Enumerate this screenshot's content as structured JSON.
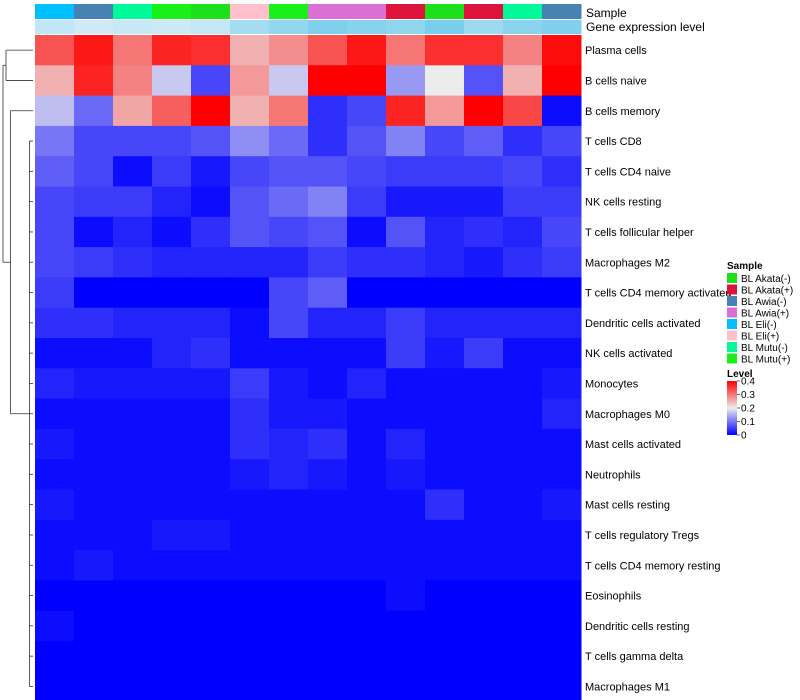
{
  "chart_data": {
    "type": "heatmap",
    "annotation_titles": {
      "sample": "Sample",
      "level": "Gene expression level"
    },
    "columns": {
      "sample": [
        "BL Eli(-)",
        "BL Awia(-)",
        "BL Mutu(-)",
        "BL Mutu(+)",
        "BL Akata(-)",
        "BL Eli(+)",
        "BL Mutu(+)",
        "BL Awia(+)",
        "BL Awia(+)",
        "BL Akata(+)",
        "BL Akata(-)",
        "BL Akata(+)",
        "BL Mutu(-)",
        "BL Awia(-)"
      ],
      "expression_level": [
        0.12,
        0.08,
        0.1,
        0.09,
        0.11,
        0.2,
        0.25,
        0.3,
        0.28,
        0.26,
        0.32,
        0.22,
        0.27,
        0.3
      ]
    },
    "rows": [
      "Plasma cells",
      "B cells naive",
      "B cells memory",
      "T cells CD8",
      "T cells CD4 naive",
      "NK cells resting",
      "T cells follicular helper",
      "Macrophages M2",
      "T cells CD4 memory activated",
      "Dendritic cells activated",
      "NK cells activated",
      "Monocytes",
      "Macrophages M0",
      "Mast cells activated",
      "Neutrophils",
      "Mast cells resting",
      "T cells regulatory  Tregs",
      "T cells CD4 memory resting",
      "Eosinophils",
      "Dendritic cells resting",
      "T cells gamma delta",
      "Macrophages M1"
    ],
    "values": [
      [
        0.33,
        0.38,
        0.3,
        0.37,
        0.36,
        0.25,
        0.28,
        0.33,
        0.38,
        0.3,
        0.36,
        0.36,
        0.29,
        0.39
      ],
      [
        0.25,
        0.37,
        0.29,
        0.17,
        0.06,
        0.27,
        0.17,
        0.4,
        0.4,
        0.13,
        0.2,
        0.07,
        0.25,
        0.4
      ],
      [
        0.16,
        0.09,
        0.26,
        0.32,
        0.4,
        0.25,
        0.3,
        0.04,
        0.06,
        0.37,
        0.27,
        0.4,
        0.34,
        0.01
      ],
      [
        0.1,
        0.06,
        0.06,
        0.06,
        0.07,
        0.12,
        0.09,
        0.04,
        0.07,
        0.11,
        0.06,
        0.08,
        0.04,
        0.06
      ],
      [
        0.08,
        0.06,
        0.01,
        0.05,
        0.02,
        0.06,
        0.07,
        0.07,
        0.06,
        0.05,
        0.05,
        0.05,
        0.06,
        0.04
      ],
      [
        0.06,
        0.05,
        0.05,
        0.03,
        0.01,
        0.07,
        0.09,
        0.11,
        0.05,
        0.02,
        0.02,
        0.02,
        0.05,
        0.05
      ],
      [
        0.06,
        0.01,
        0.03,
        0.01,
        0.04,
        0.07,
        0.06,
        0.07,
        0.01,
        0.07,
        0.03,
        0.04,
        0.03,
        0.06
      ],
      [
        0.06,
        0.05,
        0.04,
        0.03,
        0.03,
        0.03,
        0.03,
        0.05,
        0.04,
        0.04,
        0.03,
        0.02,
        0.04,
        0.05
      ],
      [
        0.05,
        0.0,
        0.0,
        0.0,
        0.0,
        0.0,
        0.06,
        0.08,
        0.0,
        0.0,
        0.0,
        0.0,
        0.0,
        0.0
      ],
      [
        0.04,
        0.04,
        0.03,
        0.03,
        0.03,
        0.01,
        0.06,
        0.03,
        0.03,
        0.05,
        0.03,
        0.03,
        0.03,
        0.03
      ],
      [
        0.01,
        0.01,
        0.01,
        0.03,
        0.04,
        0.01,
        0.01,
        0.01,
        0.01,
        0.05,
        0.02,
        0.05,
        0.01,
        0.01
      ],
      [
        0.03,
        0.02,
        0.02,
        0.02,
        0.02,
        0.05,
        0.02,
        0.01,
        0.03,
        0.01,
        0.01,
        0.01,
        0.01,
        0.02
      ],
      [
        0.01,
        0.01,
        0.01,
        0.01,
        0.01,
        0.04,
        0.02,
        0.02,
        0.01,
        0.01,
        0.01,
        0.01,
        0.01,
        0.03
      ],
      [
        0.02,
        0.01,
        0.01,
        0.01,
        0.01,
        0.04,
        0.03,
        0.04,
        0.01,
        0.03,
        0.01,
        0.01,
        0.01,
        0.01
      ],
      [
        0.01,
        0.01,
        0.01,
        0.01,
        0.01,
        0.02,
        0.03,
        0.02,
        0.01,
        0.02,
        0.01,
        0.01,
        0.01,
        0.01
      ],
      [
        0.02,
        0.01,
        0.01,
        0.01,
        0.01,
        0.01,
        0.01,
        0.01,
        0.01,
        0.01,
        0.04,
        0.01,
        0.01,
        0.02
      ],
      [
        0.01,
        0.01,
        0.01,
        0.02,
        0.02,
        0.01,
        0.01,
        0.01,
        0.01,
        0.01,
        0.01,
        0.01,
        0.01,
        0.01
      ],
      [
        0.01,
        0.02,
        0.01,
        0.01,
        0.01,
        0.01,
        0.01,
        0.01,
        0.01,
        0.01,
        0.01,
        0.01,
        0.01,
        0.01
      ],
      [
        0.0,
        0.0,
        0.0,
        0.0,
        0.0,
        0.0,
        0.0,
        0.0,
        0.0,
        0.01,
        0.0,
        0.0,
        0.0,
        0.0
      ],
      [
        0.01,
        0.0,
        0.0,
        0.0,
        0.0,
        0.0,
        0.0,
        0.0,
        0.0,
        0.0,
        0.0,
        0.0,
        0.0,
        0.0
      ],
      [
        0.0,
        0.0,
        0.0,
        0.0,
        0.0,
        0.0,
        0.0,
        0.0,
        0.0,
        0.0,
        0.0,
        0.0,
        0.0,
        0.0
      ],
      [
        0.0,
        0.0,
        0.0,
        0.0,
        0.0,
        0.0,
        0.0,
        0.0,
        0.0,
        0.0,
        0.0,
        0.0,
        0.0,
        0.0
      ]
    ],
    "dendrogram_merges": [
      [
        0,
        1,
        0.8
      ],
      [
        2,
        3,
        0.6
      ],
      [
        5,
        6,
        0.25
      ],
      [
        4,
        7,
        0.3
      ],
      [
        3,
        8,
        0.45
      ],
      [
        9,
        10,
        0.1
      ]
    ],
    "legends": {
      "sample": {
        "title": "Sample",
        "entries": [
          {
            "label": "BL Akata(-)",
            "color": "#1ce01c"
          },
          {
            "label": "BL Akata(+)",
            "color": "#dc143c"
          },
          {
            "label": "BL Awia(-)",
            "color": "#4682b4"
          },
          {
            "label": "BL Awia(+)",
            "color": "#da70d6"
          },
          {
            "label": "BL Eli(-)",
            "color": "#00bfff"
          },
          {
            "label": "BL Eli(+)",
            "color": "#ffc0cb"
          },
          {
            "label": "BL Mutu(-)",
            "color": "#00fa9a"
          },
          {
            "label": "BL Mutu(+)",
            "color": "#19f019"
          }
        ]
      },
      "level": {
        "title": "Level",
        "range": [
          0,
          0.4
        ],
        "ticks": [
          "0.4",
          "0.3",
          "0.2",
          "0.1",
          "0"
        ],
        "tick_values": [
          0.4,
          0.3,
          0.2,
          0.1,
          0
        ],
        "colors": {
          "low": "#0000ff",
          "mid": "#ececec",
          "high": "#ff0000"
        }
      }
    }
  }
}
